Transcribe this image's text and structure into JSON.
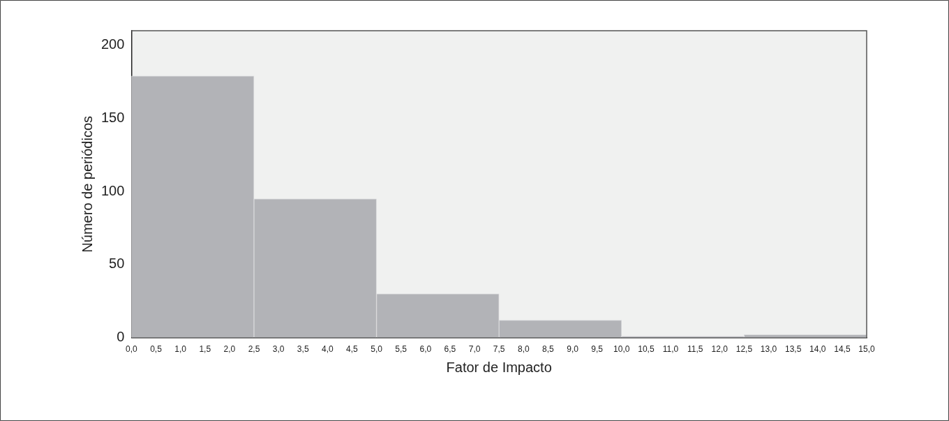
{
  "chart_data": {
    "type": "histogram",
    "xlabel": "Fator de Impacto",
    "ylabel": "Número de periódicos",
    "bins": [
      0,
      2.5,
      5,
      7.5,
      10,
      12.5,
      15
    ],
    "values": [
      179,
      95,
      30,
      12,
      1,
      2
    ],
    "color": "#b2b3b7",
    "xlim": [
      0,
      15
    ],
    "xticks": [
      {
        "value": 0,
        "label": "0,0"
      },
      {
        "value": 0.5,
        "label": "0,5"
      },
      {
        "value": 1,
        "label": "1,0"
      },
      {
        "value": 1.5,
        "label": "1,5"
      },
      {
        "value": 2,
        "label": "2,0"
      },
      {
        "value": 2.5,
        "label": "2,5"
      },
      {
        "value": 3,
        "label": "3,0"
      },
      {
        "value": 3.5,
        "label": "3,5"
      },
      {
        "value": 4,
        "label": "4,0"
      },
      {
        "value": 4.5,
        "label": "4,5"
      },
      {
        "value": 5,
        "label": "5,0"
      },
      {
        "value": 5.5,
        "label": "5,5"
      },
      {
        "value": 6,
        "label": "6,0"
      },
      {
        "value": 6.5,
        "label": "6,5"
      },
      {
        "value": 7,
        "label": "7,0"
      },
      {
        "value": 7.5,
        "label": "7,5"
      },
      {
        "value": 8,
        "label": "8,0"
      },
      {
        "value": 8.5,
        "label": "8,5"
      },
      {
        "value": 9,
        "label": "9,0"
      },
      {
        "value": 9.5,
        "label": "9,5"
      },
      {
        "value": 10,
        "label": "10,0"
      },
      {
        "value": 10.5,
        "label": "10,5"
      },
      {
        "value": 11,
        "label": "11,0"
      },
      {
        "value": 11.5,
        "label": "11,5"
      },
      {
        "value": 12,
        "label": "12,0"
      },
      {
        "value": 12.5,
        "label": "12,5"
      },
      {
        "value": 13,
        "label": "13,0"
      },
      {
        "value": 13.5,
        "label": "13,5"
      },
      {
        "value": 14,
        "label": "14,0"
      },
      {
        "value": 14.5,
        "label": "14,5"
      },
      {
        "value": 15,
        "label": "15,0"
      }
    ],
    "ylim": [
      0,
      210
    ],
    "yticks": [
      0,
      50,
      100,
      150,
      200
    ],
    "grid": false,
    "legend": false
  }
}
